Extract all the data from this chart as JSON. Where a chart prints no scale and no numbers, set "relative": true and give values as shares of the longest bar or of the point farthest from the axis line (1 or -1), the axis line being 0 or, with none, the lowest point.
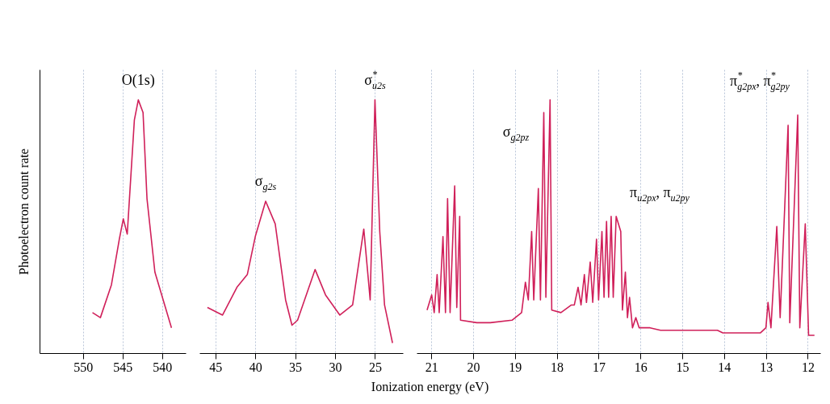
{
  "chart_data": [
    {
      "type": "line",
      "relative": true,
      "ylabel": "Photoelectron count rate",
      "grid": "x",
      "xlim": [
        555.5,
        537
      ],
      "xticks": [
        550,
        545,
        540
      ],
      "series": [
        {
          "color": "#d0205a",
          "x": [
            548.8,
            547.8,
            546.4,
            545.4,
            544.9,
            544.4,
            543.5,
            543.0,
            542.4,
            541.9,
            540.9,
            538.8
          ],
          "values": [
            0.16,
            0.14,
            0.27,
            0.45,
            0.53,
            0.47,
            0.92,
            1.0,
            0.95,
            0.61,
            0.32,
            0.1
          ]
        }
      ],
      "annotations": [
        {
          "text": "O(1s)",
          "x": 543.0,
          "y": 1.0
        }
      ]
    },
    {
      "type": "line",
      "relative": true,
      "xlabel": "Ionization energy (eV)",
      "grid": "x",
      "xlim": [
        47,
        21.5
      ],
      "xticks": [
        45,
        40,
        35,
        30,
        25
      ],
      "series": [
        {
          "color": "#d0205a",
          "x": [
            46.0,
            44.1,
            42.3,
            41.0,
            40.0,
            38.7,
            37.5,
            36.2,
            35.4,
            34.7,
            32.5,
            31.2,
            29.4,
            27.8,
            26.4,
            25.6,
            25.0,
            24.4,
            23.8,
            22.8
          ],
          "values": [
            0.18,
            0.15,
            0.26,
            0.31,
            0.46,
            0.6,
            0.51,
            0.21,
            0.11,
            0.13,
            0.33,
            0.23,
            0.15,
            0.19,
            0.49,
            0.21,
            1.0,
            0.48,
            0.19,
            0.04
          ]
        }
      ],
      "annotations": [
        {
          "text": "σ$_{g2s}$",
          "x": 38.7,
          "y": 0.6
        },
        {
          "text": "σ$^{*}$$_{u2s}$",
          "x": 25.0,
          "y": 1.0
        }
      ]
    },
    {
      "type": "line",
      "relative": true,
      "grid": "x",
      "xlim": [
        21.35,
        11.7
      ],
      "xticks": [
        21,
        20,
        19,
        18,
        17,
        16,
        15,
        14,
        13,
        12
      ],
      "series": [
        {
          "color": "#d0205a",
          "x": [
            21.1,
            20.99,
            20.93,
            20.86,
            20.81,
            20.72,
            20.66,
            20.61,
            20.55,
            20.44,
            20.39,
            20.32,
            20.3,
            19.91,
            19.59,
            19.07,
            18.84,
            18.75,
            18.68,
            18.6,
            18.55,
            18.44,
            18.39,
            18.31,
            18.26,
            18.16,
            18.12,
            17.9,
            17.65,
            17.58,
            17.49,
            17.42,
            17.34,
            17.29,
            17.2,
            17.14,
            17.05,
            17.0,
            16.92,
            16.87,
            16.81,
            16.76,
            16.7,
            16.65,
            16.58,
            16.47,
            16.43,
            16.36,
            16.31,
            16.26,
            16.19,
            16.11,
            16.03,
            15.77,
            15.52,
            14.16,
            14.03,
            13.13,
            13.0,
            12.95,
            12.88,
            12.74,
            12.66,
            12.47,
            12.43,
            12.24,
            12.19,
            12.06,
            11.98,
            11.84
          ],
          "values": [
            0.17,
            0.23,
            0.16,
            0.31,
            0.16,
            0.46,
            0.16,
            0.61,
            0.16,
            0.66,
            0.18,
            0.54,
            0.13,
            0.12,
            0.12,
            0.13,
            0.16,
            0.28,
            0.21,
            0.48,
            0.21,
            0.65,
            0.21,
            0.95,
            0.22,
            1.0,
            0.17,
            0.16,
            0.19,
            0.19,
            0.26,
            0.19,
            0.31,
            0.2,
            0.36,
            0.2,
            0.45,
            0.21,
            0.48,
            0.22,
            0.52,
            0.22,
            0.54,
            0.22,
            0.54,
            0.48,
            0.17,
            0.32,
            0.14,
            0.22,
            0.1,
            0.14,
            0.1,
            0.1,
            0.09,
            0.09,
            0.08,
            0.08,
            0.1,
            0.2,
            0.1,
            0.5,
            0.14,
            0.9,
            0.12,
            0.94,
            0.1,
            0.51,
            0.07,
            0.07
          ]
        }
      ],
      "annotations": [
        "σ$_{g2pz}$",
        "π$_{u2px}$, π$_{u2py}$",
        "π$^{*}$$_{g2px}$, π$^{*}$$_{g2py}$"
      ]
    }
  ]
}
